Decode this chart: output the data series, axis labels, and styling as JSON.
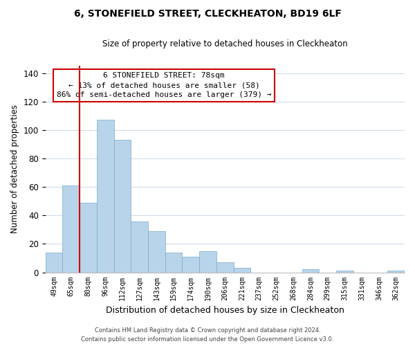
{
  "title": "6, STONEFIELD STREET, CLECKHEATON, BD19 6LF",
  "subtitle": "Size of property relative to detached houses in Cleckheaton",
  "xlabel": "Distribution of detached houses by size in Cleckheaton",
  "ylabel": "Number of detached properties",
  "bar_labels": [
    "49sqm",
    "65sqm",
    "80sqm",
    "96sqm",
    "112sqm",
    "127sqm",
    "143sqm",
    "159sqm",
    "174sqm",
    "190sqm",
    "206sqm",
    "221sqm",
    "237sqm",
    "252sqm",
    "268sqm",
    "284sqm",
    "299sqm",
    "315sqm",
    "331sqm",
    "346sqm",
    "362sqm"
  ],
  "bar_values": [
    14,
    61,
    49,
    107,
    93,
    36,
    29,
    14,
    11,
    15,
    7,
    3,
    0,
    0,
    0,
    2,
    0,
    1,
    0,
    0,
    1
  ],
  "bar_color": "#b8d4ea",
  "bar_edge_color": "#7aaac8",
  "vline_color": "#cc0000",
  "vline_pos": 1.5,
  "ylim": [
    0,
    145
  ],
  "yticks": [
    0,
    20,
    40,
    60,
    80,
    100,
    120,
    140
  ],
  "annotation_title": "6 STONEFIELD STREET: 78sqm",
  "annotation_line1": "← 13% of detached houses are smaller (58)",
  "annotation_line2": "86% of semi-detached houses are larger (379) →",
  "annotation_box_color": "#ffffff",
  "annotation_box_edge_color": "#cc0000",
  "footer_line1": "Contains HM Land Registry data © Crown copyright and database right 2024.",
  "footer_line2": "Contains public sector information licensed under the Open Government Licence v3.0.",
  "background_color": "#ffffff",
  "grid_color": "#ccd8e8"
}
